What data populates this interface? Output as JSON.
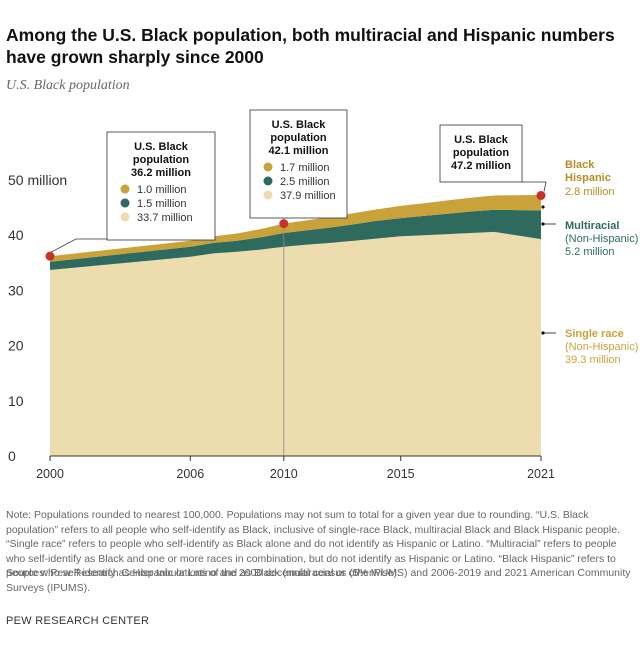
{
  "title": "Among the U.S. Black population, both multiracial and Hispanic numbers have grown sharply since 2000",
  "subtitle": "U.S. Black population",
  "chart_data": {
    "type": "area",
    "stacked": true,
    "x": [
      2000,
      2006,
      2007,
      2008,
      2009,
      2010,
      2011,
      2012,
      2013,
      2014,
      2015,
      2016,
      2017,
      2018,
      2019,
      2021
    ],
    "series": [
      {
        "name": "Single race",
        "values": [
          33.7,
          36.1,
          36.7,
          37.0,
          37.4,
          37.9,
          38.3,
          38.6,
          39.0,
          39.4,
          39.8,
          40.0,
          40.2,
          40.4,
          40.6,
          39.3
        ],
        "color": "#ecdcae"
      },
      {
        "name": "Multiracial",
        "values": [
          1.5,
          1.8,
          1.9,
          2.0,
          2.2,
          2.5,
          2.6,
          2.8,
          3.0,
          3.2,
          3.3,
          3.5,
          3.7,
          3.9,
          4.0,
          5.2
        ],
        "color": "#2e6b5e"
      },
      {
        "name": "Black Hispanic",
        "values": [
          1.0,
          1.1,
          1.2,
          1.3,
          1.5,
          1.7,
          1.8,
          1.9,
          2.0,
          2.1,
          2.2,
          2.3,
          2.4,
          2.5,
          2.6,
          2.8
        ],
        "color": "#c9a33a"
      }
    ],
    "xticks": [
      "2000",
      "2006",
      "2010",
      "2015",
      "2021"
    ],
    "yticks": [
      "0",
      "10",
      "20",
      "30",
      "40",
      "50 million"
    ],
    "ylim": [
      0,
      50
    ],
    "xlim": [
      2000,
      2021
    ],
    "grid": false,
    "reference_line_x": 2010,
    "highlight_points": [
      {
        "x": 2000,
        "y": 36.2
      },
      {
        "x": 2010,
        "y": 42.1
      },
      {
        "x": 2021,
        "y": 47.2
      }
    ],
    "callouts": [
      {
        "head1": "U.S. Black",
        "head2": "population",
        "head3": "36.2 million",
        "rows": [
          "1.0 million",
          "1.5 million",
          "33.7 million"
        ]
      },
      {
        "head1": "U.S. Black",
        "head2": "population",
        "head3": "42.1 million",
        "rows": [
          "1.7 million",
          "2.5 million",
          "37.9 million"
        ]
      },
      {
        "head1": "U.S. Black",
        "head2": "population",
        "head3": "47.2 million",
        "rows": []
      }
    ],
    "right_labels": [
      {
        "name1": "Black",
        "name2": "Hispanic",
        "detail": "",
        "value": "2.8 million",
        "color": "#b58e22",
        "value_color": "#b58e22"
      },
      {
        "name1": "Multiracial",
        "name2": "",
        "detail": "(Non-Hispanic)",
        "value": "5.2 million",
        "color": "#2e6b5e",
        "value_color": "#2e6b5e"
      },
      {
        "name1": "Single race",
        "name2": "",
        "detail": "(Non-Hispanic)",
        "value": "39.3 million",
        "color": "#c9a33a",
        "value_color": "#c9a33a"
      }
    ],
    "point_color": "#c8322a"
  },
  "note": "Note: Populations rounded to nearest 100,000. Populations may not sum to total for a given year due to rounding. “U.S. Black population” refers to all people who self-identify as Black, inclusive of single-race Black, multiracial Black and Black Hispanic people. “Single race” refers to people who self-identify as Black alone and do not identify as Hispanic or Latino. “Multiracial” refers to people who self-identify as Black and one or more races in combination, but do not identify as Hispanic or Latino. “Black Hispanic” refers to people who self-identify as Hispanic or Latino and as Black (multiracial or otherwise).",
  "source": "Sources: Pew Research Center tabulations of the 2000 decennial census (5% IPUMS) and 2006-2019 and 2021 American Community Surveys (IPUMS).",
  "footer": "PEW RESEARCH CENTER"
}
